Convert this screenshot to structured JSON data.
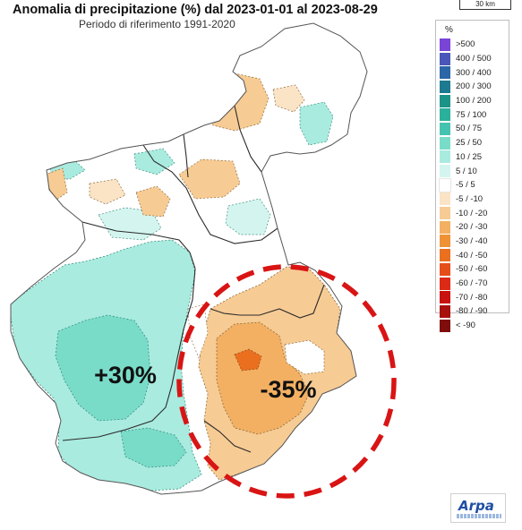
{
  "header": {
    "title": "Anomalia di precipitazione (%) dal 2023-01-01 al 2023-08-29",
    "subtitle": "Periodo di riferimento 1991-2020"
  },
  "scale": {
    "label": "30 km"
  },
  "legend": {
    "unit": "%",
    "items": [
      {
        "label": ">500",
        "color": "#7a45d6"
      },
      {
        "label": "400 / 500",
        "color": "#4a56b8"
      },
      {
        "label": "300 / 400",
        "color": "#2b66a6"
      },
      {
        "label": "200 / 300",
        "color": "#1d7a90"
      },
      {
        "label": "100 / 200",
        "color": "#1b9487"
      },
      {
        "label": "75 / 100",
        "color": "#2bb09b"
      },
      {
        "label": "50 / 75",
        "color": "#44c4b0"
      },
      {
        "label": "25 / 50",
        "color": "#79dcc9"
      },
      {
        "label": "10 / 25",
        "color": "#a9ebdf"
      },
      {
        "label": "5 / 10",
        "color": "#d4f5ef"
      },
      {
        "label": "-5 / 5",
        "color": "#ffffff"
      },
      {
        "label": "-5 / -10",
        "color": "#fbe3c6"
      },
      {
        "label": "-10 / -20",
        "color": "#f7cb94"
      },
      {
        "label": "-20 / -30",
        "color": "#f3b062"
      },
      {
        "label": "-30 / -40",
        "color": "#ef9236"
      },
      {
        "label": "-40 / -50",
        "color": "#ea6f1f"
      },
      {
        "label": "-50 / -60",
        "color": "#e54e1a"
      },
      {
        "label": "-60 / -70",
        "color": "#db2a16"
      },
      {
        "label": "-70 / -80",
        "color": "#c8120f"
      },
      {
        "label": "-80 / -90",
        "color": "#a8100e"
      },
      {
        "label": "< -90",
        "color": "#7e0d0b"
      }
    ]
  },
  "annotations": {
    "west_value": "+30%",
    "east_value": "-35%"
  },
  "logo": {
    "text": "Arpa"
  }
}
